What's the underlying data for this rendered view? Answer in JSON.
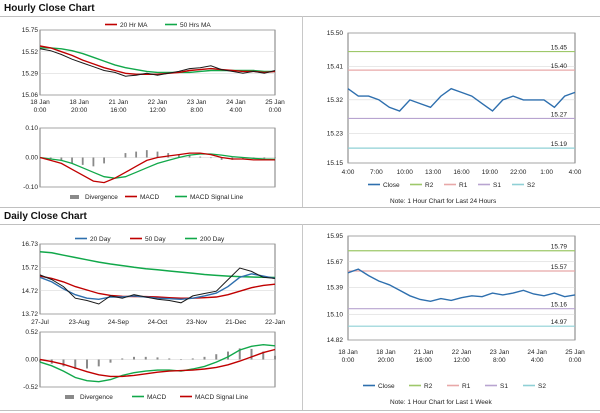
{
  "sections": {
    "hourly_title": "Hourly Close Chart",
    "daily_title": "Daily Close Chart"
  },
  "colors": {
    "close": "#2e6fae",
    "ma_short": "#c00000",
    "ma_long": "#11a84a",
    "macd": "#c00000",
    "signal": "#11a84a",
    "divergence": "#8a8a8a",
    "price": "#1a1a1a",
    "r2": "#9ec86a",
    "r1": "#e8a8a8",
    "s1": "#b8a4d0",
    "s2": "#8fd0d6"
  },
  "chart_data": [
    {
      "id": "hourly_price",
      "type": "line",
      "legend": [
        "20 Hr MA",
        "50 Hrs MA"
      ],
      "x_ticks": [
        "18 Jan\n0:00",
        "18 Jan\n20:00",
        "21 Jan\n16:00",
        "22 Jan\n12:00",
        "23 Jan\n8:00",
        "24 Jan\n4:00",
        "25 Jan\n0:00"
      ],
      "y_ticks": [
        "15.75",
        "15.52",
        "15.29",
        "15.06"
      ],
      "ylim": [
        15.06,
        15.75
      ],
      "series": [
        {
          "name": "price",
          "values": [
            15.55,
            15.53,
            15.49,
            15.44,
            15.4,
            15.36,
            15.32,
            15.3,
            15.26,
            15.27,
            15.29,
            15.27,
            15.29,
            15.31,
            15.34,
            15.35,
            15.37,
            15.33,
            15.31,
            15.29,
            15.31,
            15.29,
            15.32
          ]
        },
        {
          "name": "20 Hr MA",
          "values": [
            15.58,
            15.56,
            15.52,
            15.48,
            15.43,
            15.39,
            15.35,
            15.32,
            15.29,
            15.28,
            15.28,
            15.28,
            15.29,
            15.3,
            15.32,
            15.33,
            15.34,
            15.33,
            15.32,
            15.31,
            15.31,
            15.3,
            15.31
          ]
        },
        {
          "name": "50 Hrs MA",
          "values": [
            15.56,
            15.56,
            15.55,
            15.53,
            15.5,
            15.46,
            15.42,
            15.38,
            15.35,
            15.33,
            15.31,
            15.3,
            15.3,
            15.3,
            15.3,
            15.31,
            15.32,
            15.32,
            15.32,
            15.32,
            15.32,
            15.31,
            15.31
          ]
        }
      ]
    },
    {
      "id": "hourly_macd",
      "type": "line",
      "legend": [
        "Divergence",
        "MACD",
        "MACD Signal Line"
      ],
      "y_ticks": [
        "0.10",
        "0.00",
        "-0.10"
      ],
      "ylim": [
        -0.1,
        0.1
      ],
      "series": [
        {
          "name": "MACD",
          "values": [
            0.0,
            -0.01,
            -0.02,
            -0.04,
            -0.06,
            -0.08,
            -0.085,
            -0.07,
            -0.05,
            -0.03,
            -0.01,
            0.0,
            0.005,
            0.01,
            0.015,
            0.015,
            0.01,
            0.0,
            -0.005,
            -0.005,
            -0.008,
            -0.008,
            -0.008
          ]
        },
        {
          "name": "MACD Signal Line",
          "values": [
            0.0,
            -0.005,
            -0.01,
            -0.02,
            -0.035,
            -0.05,
            -0.065,
            -0.07,
            -0.065,
            -0.05,
            -0.035,
            -0.02,
            -0.01,
            0.0,
            0.008,
            0.012,
            0.012,
            0.008,
            0.003,
            0.0,
            -0.003,
            -0.005,
            -0.006
          ]
        },
        {
          "name": "Divergence",
          "values": [
            0.0,
            -0.005,
            -0.01,
            -0.02,
            -0.025,
            -0.03,
            -0.02,
            0.0,
            0.015,
            0.02,
            0.025,
            0.02,
            0.015,
            0.01,
            0.007,
            0.003,
            -0.002,
            -0.008,
            -0.008,
            -0.005,
            -0.005,
            -0.003,
            -0.002
          ]
        }
      ]
    },
    {
      "id": "last24",
      "type": "line",
      "x_ticks": [
        "4:00",
        "7:00",
        "10:00",
        "13:00",
        "16:00",
        "19:00",
        "22:00",
        "1:00",
        "4:00"
      ],
      "y_ticks": [
        "15.50",
        "15.41",
        "15.32",
        "15.23",
        "15.15"
      ],
      "ylim": [
        15.15,
        15.5
      ],
      "levels": [
        {
          "name": "R2",
          "value": 15.45
        },
        {
          "name": "R1",
          "value": 15.4
        },
        {
          "name": "S1",
          "value": 15.27
        },
        {
          "name": "S2",
          "value": 15.19
        }
      ],
      "level_labels": [
        "15.45",
        "15.40",
        "15.27",
        "15.19"
      ],
      "series": [
        {
          "name": "Close",
          "values": [
            15.35,
            15.33,
            15.33,
            15.32,
            15.3,
            15.29,
            15.32,
            15.31,
            15.3,
            15.33,
            15.35,
            15.34,
            15.33,
            15.31,
            15.29,
            15.32,
            15.33,
            15.32,
            15.32,
            15.32,
            15.3,
            15.33,
            15.34
          ]
        }
      ],
      "legend": [
        "Close",
        "R2",
        "R1",
        "S1",
        "S2"
      ],
      "note": "Note: 1 Hour Chart for Last 24 Hours"
    },
    {
      "id": "daily_price",
      "type": "line",
      "legend": [
        "20 Day",
        "50 Day",
        "200 Day"
      ],
      "x_ticks": [
        "27-Jul",
        "23-Aug",
        "24-Sep",
        "24-Oct",
        "23-Nov",
        "21-Dec",
        "22-Jan"
      ],
      "y_ticks": [
        "16.73",
        "15.72",
        "14.72",
        "13.72"
      ],
      "ylim": [
        13.72,
        16.73
      ],
      "series": [
        {
          "name": "price",
          "values": [
            15.4,
            15.2,
            14.9,
            14.4,
            14.3,
            14.15,
            14.5,
            14.4,
            14.55,
            14.45,
            14.35,
            14.3,
            14.2,
            14.5,
            14.6,
            14.7,
            15.2,
            15.7,
            15.55,
            15.3,
            15.25
          ]
        },
        {
          "name": "20 Day",
          "values": [
            15.3,
            15.1,
            14.8,
            14.55,
            14.4,
            14.35,
            14.45,
            14.45,
            14.5,
            14.45,
            14.4,
            14.38,
            14.35,
            14.4,
            14.5,
            14.62,
            14.9,
            15.3,
            15.45,
            15.35,
            15.25
          ]
        },
        {
          "name": "50 Day",
          "values": [
            15.35,
            15.25,
            15.1,
            14.9,
            14.75,
            14.6,
            14.52,
            14.48,
            14.47,
            14.47,
            14.45,
            14.42,
            14.4,
            14.4,
            14.42,
            14.45,
            14.55,
            14.7,
            14.85,
            14.95,
            15.0
          ]
        },
        {
          "name": "200 Day",
          "values": [
            16.4,
            16.35,
            16.25,
            16.15,
            16.05,
            15.95,
            15.87,
            15.8,
            15.73,
            15.67,
            15.62,
            15.57,
            15.52,
            15.47,
            15.42,
            15.38,
            15.35,
            15.33,
            15.31,
            15.3,
            15.29
          ]
        }
      ]
    },
    {
      "id": "daily_macd",
      "type": "line",
      "legend": [
        "Divergence",
        "MACD",
        "MACD Signal Line"
      ],
      "y_ticks": [
        "0.52",
        "0.00",
        "-0.52"
      ],
      "ylim": [
        -0.52,
        0.52
      ],
      "series": [
        {
          "name": "MACD",
          "values": [
            -0.05,
            -0.12,
            -0.22,
            -0.34,
            -0.4,
            -0.42,
            -0.38,
            -0.3,
            -0.25,
            -0.22,
            -0.2,
            -0.2,
            -0.22,
            -0.18,
            -0.13,
            -0.05,
            0.05,
            0.18,
            0.25,
            0.28,
            0.26
          ]
        },
        {
          "name": "MACD Signal Line",
          "values": [
            0.0,
            -0.04,
            -0.09,
            -0.16,
            -0.23,
            -0.29,
            -0.32,
            -0.32,
            -0.3,
            -0.27,
            -0.24,
            -0.22,
            -0.21,
            -0.2,
            -0.18,
            -0.15,
            -0.1,
            -0.03,
            0.05,
            0.13,
            0.19
          ]
        },
        {
          "name": "Divergence",
          "values": [
            -0.05,
            -0.08,
            -0.13,
            -0.18,
            -0.17,
            -0.13,
            -0.06,
            0.02,
            0.05,
            0.05,
            0.04,
            0.02,
            -0.01,
            0.02,
            0.05,
            0.1,
            0.15,
            0.21,
            0.2,
            0.15,
            0.07
          ]
        }
      ]
    },
    {
      "id": "lastweek",
      "type": "line",
      "x_ticks": [
        "18 Jan\n0:00",
        "18 Jan\n20:00",
        "21 Jan\n16:00",
        "22 Jan\n12:00",
        "23 Jan\n8:00",
        "24 Jan\n4:00",
        "25 Jan\n0:00"
      ],
      "y_ticks": [
        "15.95",
        "15.67",
        "15.39",
        "15.10",
        "14.82"
      ],
      "ylim": [
        14.82,
        15.95
      ],
      "levels": [
        {
          "name": "R2",
          "value": 15.79
        },
        {
          "name": "R1",
          "value": 15.57
        },
        {
          "name": "S1",
          "value": 15.16
        },
        {
          "name": "S2",
          "value": 14.97
        }
      ],
      "level_labels": [
        "15.79",
        "15.57",
        "15.16",
        "14.97"
      ],
      "series": [
        {
          "name": "Close",
          "values": [
            15.55,
            15.59,
            15.52,
            15.46,
            15.42,
            15.36,
            15.3,
            15.26,
            15.24,
            15.27,
            15.25,
            15.28,
            15.3,
            15.29,
            15.33,
            15.31,
            15.33,
            15.36,
            15.32,
            15.3,
            15.33,
            15.29,
            15.31
          ]
        }
      ],
      "legend": [
        "Close",
        "R2",
        "R1",
        "S1",
        "S2"
      ],
      "note": "Note: 1 Hour Chart for Last 1 Week"
    }
  ]
}
